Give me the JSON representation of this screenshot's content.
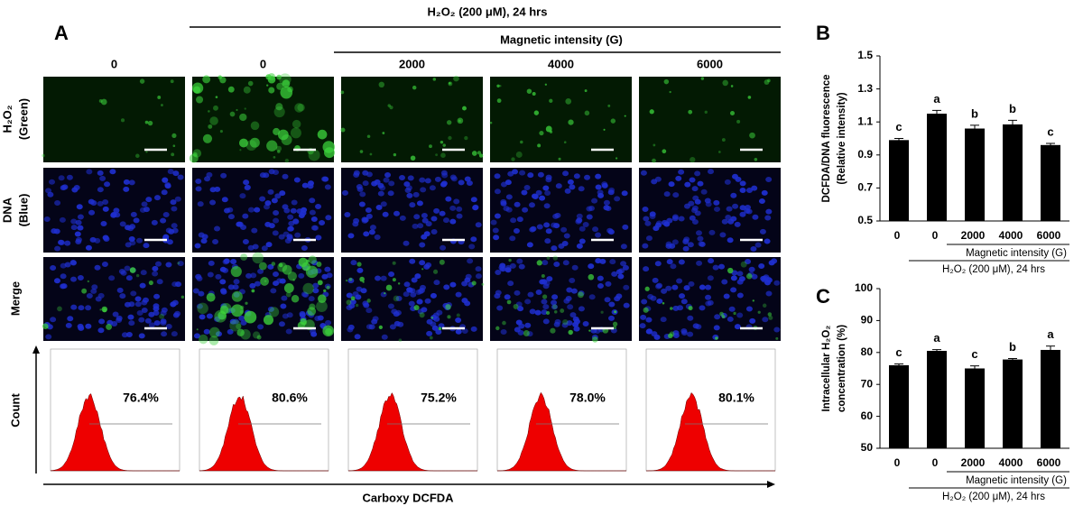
{
  "panel_a": {
    "letter": "A",
    "title": "H₂O₂ (200 μM), 24 hrs",
    "subtitle": "Magnetic intensity (G)",
    "columns": [
      "0",
      "0",
      "2000",
      "4000",
      "6000"
    ],
    "row_labels": [
      [
        "H₂O₂",
        "(Green)"
      ],
      [
        "DNA",
        "(Blue)"
      ],
      [
        "Merge"
      ]
    ],
    "y_label": "Count",
    "x_label": "Carboxy DCFDA",
    "percentages": [
      "76.4%",
      "80.6%",
      "75.2%",
      "78.0%",
      "80.1%"
    ]
  },
  "chart_data": [
    {
      "type": "bar",
      "letter": "B",
      "y_label": [
        "DCFDA/DNA fluorescence",
        "(Relative intensity)"
      ],
      "categories": [
        "0",
        "0",
        "2000",
        "4000",
        "6000"
      ],
      "values": [
        0.99,
        1.15,
        1.06,
        1.085,
        0.96
      ],
      "errors": [
        0.01,
        0.02,
        0.02,
        0.025,
        0.01
      ],
      "letters": [
        "c",
        "a",
        "b",
        "b",
        "c"
      ],
      "color": "#000000",
      "ylim": [
        0.5,
        1.5
      ],
      "yticks": [
        0.5,
        0.7,
        0.9,
        1.1,
        1.3,
        1.5
      ],
      "group_labels": [
        "Magnetic intensity (G)",
        "H₂O₂ (200 μM), 24 hrs"
      ]
    },
    {
      "type": "bar",
      "letter": "C",
      "y_label": [
        "Intracellular H₂O₂",
        "concentration (%)"
      ],
      "categories": [
        "0",
        "0",
        "2000",
        "4000",
        "6000"
      ],
      "values": [
        76,
        80.5,
        75,
        77.8,
        80.8
      ],
      "errors": [
        0.4,
        0.4,
        0.8,
        0.3,
        1.2
      ],
      "letters": [
        "c",
        "a",
        "c",
        "b",
        "a"
      ],
      "color": "#000000",
      "ylim": [
        50,
        100
      ],
      "yticks": [
        50,
        60,
        70,
        80,
        90,
        100
      ],
      "group_labels": [
        "Magnetic intensity (G)",
        "H₂O₂ (200 μM), 24 hrs"
      ]
    }
  ]
}
